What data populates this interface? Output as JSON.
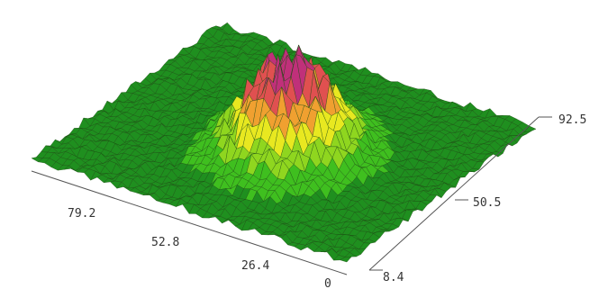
{
  "chart_data": {
    "type": "surface",
    "title": "",
    "xlabel": "",
    "ylabel": "",
    "zlabel": "",
    "x_ticks": [
      "79.2",
      "52.8",
      "26.4",
      "0"
    ],
    "y_ticks": [
      "8.4",
      "50.5",
      "92.5"
    ],
    "x_range": [
      0,
      105.6
    ],
    "y_range": [
      8.4,
      92.5
    ],
    "grid": false,
    "legend": "none",
    "colormap": [
      "#1f8f1f",
      "#3fbf1f",
      "#8fd61f",
      "#e8e820",
      "#f0a030",
      "#e05050",
      "#c0307a",
      "#ffffff"
    ],
    "surface": {
      "description_type": "central-peak-with-noise",
      "peak_center_x": 52.8,
      "peak_center_y": 50.5,
      "peak_relative_height": 1.0,
      "background_relative_height": 0.1
    }
  }
}
